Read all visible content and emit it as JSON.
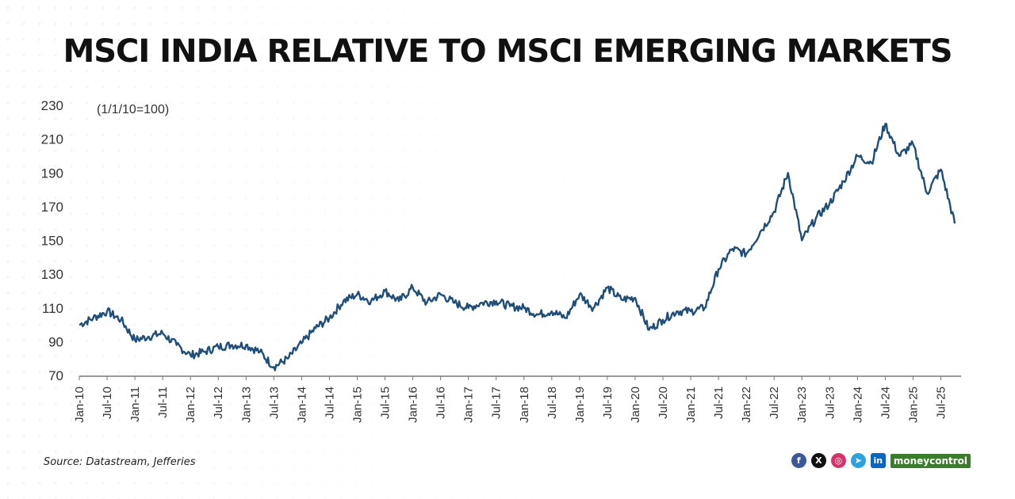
{
  "title": "MSCI INDIA RELATIVE TO MSCI EMERGING MARKETS",
  "source": "Source: Datastream, Jefferies",
  "brand": "moneycontrol",
  "social_icons": [
    "facebook-icon",
    "x-icon",
    "instagram-icon",
    "telegram-icon",
    "linkedin-icon"
  ],
  "colors": {
    "line": "#1f4e7a",
    "title": "#111111",
    "axis": "#555555"
  },
  "chart_data": {
    "type": "line",
    "title": "MSCI INDIA RELATIVE TO MSCI EMERGING MARKETS",
    "annotation": "(1/1/10=100)",
    "xlabel": "",
    "ylabel": "",
    "ylim": [
      70,
      230
    ],
    "yticks": [
      70,
      90,
      110,
      130,
      150,
      170,
      190,
      210,
      230
    ],
    "xticks": [
      "Jan-10",
      "Jul-10",
      "Jan-11",
      "Jul-11",
      "Jan-12",
      "Jul-12",
      "Jan-13",
      "Jul-13",
      "Jan-14",
      "Jul-14",
      "Jan-15",
      "Jul-15",
      "Jan-16",
      "Jul-16",
      "Jan-17",
      "Jul-17",
      "Jan-18",
      "Jul-18",
      "Jan-19",
      "Jul-19",
      "Jan-20",
      "Jul-20",
      "Jan-21",
      "Jul-21",
      "Jan-22",
      "Jul-22",
      "Jan-23",
      "Jul-23",
      "Jan-24",
      "Jul-24",
      "Jan-25",
      "Jul-25"
    ],
    "grid": false,
    "series": [
      {
        "name": "",
        "x": [
          "Jan-10",
          "Apr-10",
          "Jul-10",
          "Oct-10",
          "Jan-11",
          "Apr-11",
          "Jul-11",
          "Oct-11",
          "Jan-12",
          "Apr-12",
          "Jul-12",
          "Oct-12",
          "Jan-13",
          "Apr-13",
          "Jul-13",
          "Oct-13",
          "Jan-14",
          "Apr-14",
          "Jul-14",
          "Oct-14",
          "Jan-15",
          "Apr-15",
          "Jul-15",
          "Oct-15",
          "Jan-16",
          "Apr-16",
          "Jul-16",
          "Oct-16",
          "Jan-17",
          "Apr-17",
          "Jul-17",
          "Oct-17",
          "Jan-18",
          "Apr-18",
          "Jul-18",
          "Oct-18",
          "Jan-19",
          "Apr-19",
          "Jul-19",
          "Oct-19",
          "Jan-20",
          "Apr-20",
          "Jul-20",
          "Oct-20",
          "Jan-21",
          "Apr-21",
          "Jul-21",
          "Oct-21",
          "Jan-22",
          "Apr-22",
          "Jul-22",
          "Oct-22",
          "Jan-23",
          "Apr-23",
          "Jul-23",
          "Oct-23",
          "Jan-24",
          "Apr-24",
          "Jul-24",
          "Oct-24",
          "Jan-25",
          "Apr-25",
          "Jul-25",
          "Oct-25"
        ],
        "values": [
          100,
          104,
          108,
          103,
          91,
          93,
          95,
          88,
          82,
          84,
          87,
          88,
          88,
          84,
          75,
          80,
          89,
          98,
          104,
          114,
          118,
          114,
          120,
          114,
          122,
          113,
          118,
          113,
          110,
          113,
          114,
          111,
          110,
          106,
          108,
          104,
          118,
          110,
          122,
          115,
          116,
          97,
          103,
          108,
          108,
          110,
          133,
          145,
          142,
          155,
          167,
          190,
          150,
          163,
          172,
          185,
          200,
          196,
          219,
          200,
          207,
          178,
          192,
          160
        ]
      }
    ]
  }
}
